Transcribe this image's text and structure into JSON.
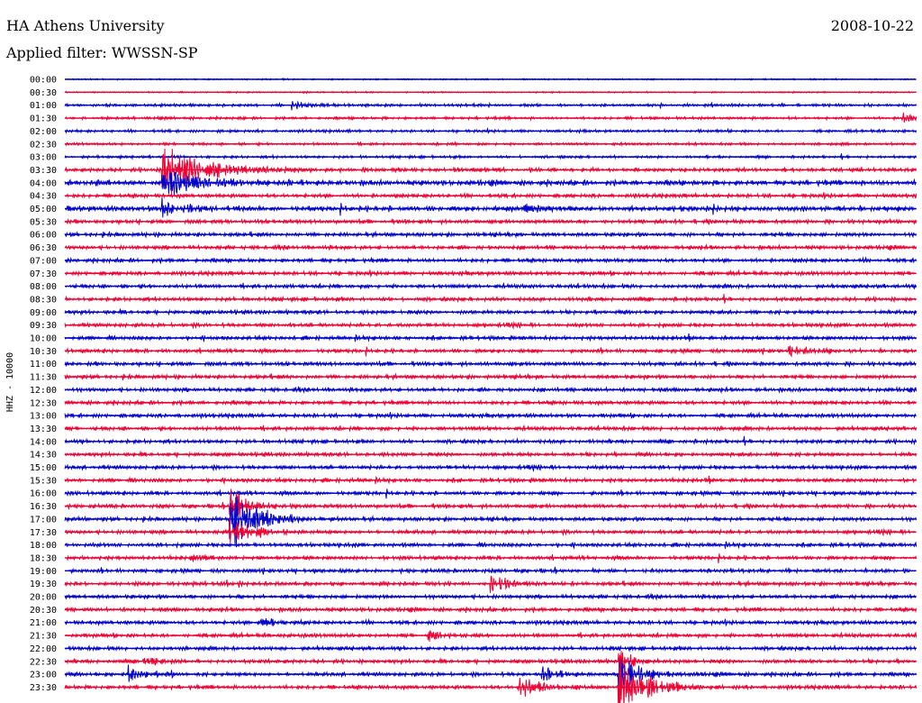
{
  "header": {
    "title": "HA Athens University",
    "date": "2008-10-22",
    "filter_label": "Applied filter: WWSSN-SP"
  },
  "chart_data": {
    "type": "line",
    "title": "",
    "xlabel": "",
    "ylabel": "HHZ - 10000",
    "grid": false,
    "legend": "none",
    "colors": [
      "#0000cc",
      "#ee0033"
    ],
    "rows": [
      "00:00",
      "00:30",
      "01:00",
      "01:30",
      "02:00",
      "02:30",
      "03:00",
      "03:30",
      "04:00",
      "04:30",
      "05:00",
      "05:30",
      "06:00",
      "06:30",
      "07:00",
      "07:30",
      "08:00",
      "08:30",
      "09:00",
      "09:30",
      "10:00",
      "10:30",
      "11:00",
      "11:30",
      "12:00",
      "12:30",
      "13:00",
      "13:30",
      "14:00",
      "14:30",
      "15:00",
      "15:30",
      "16:00",
      "16:30",
      "17:00",
      "17:30",
      "18:00",
      "18:30",
      "19:00",
      "19:30",
      "20:00",
      "20:30",
      "21:00",
      "21:30",
      "22:00",
      "22:30",
      "23:00",
      "23:30"
    ],
    "noise_level": [
      1,
      1,
      2,
      2,
      2,
      2,
      2,
      3,
      4,
      3,
      4,
      3,
      3,
      3,
      3,
      3,
      3,
      3,
      3,
      3,
      3,
      3,
      3,
      3,
      3,
      3,
      3,
      3,
      3,
      3,
      3,
      3,
      3,
      3,
      3,
      3,
      3,
      3,
      3,
      3,
      3,
      3,
      3,
      3,
      3,
      3,
      3,
      3
    ],
    "events": [
      {
        "row": 2,
        "minute": 8.0,
        "amp": 0.5,
        "dur": 1.0
      },
      {
        "row": 3,
        "minute": 29.5,
        "amp": 0.6,
        "dur": 0.6
      },
      {
        "row": 7,
        "minute": 3.4,
        "amp": 3.0,
        "dur": 2.0
      },
      {
        "row": 8,
        "minute": 3.4,
        "amp": 1.5,
        "dur": 2.0
      },
      {
        "row": 10,
        "minute": 3.4,
        "amp": 1.0,
        "dur": 1.0
      },
      {
        "row": 10,
        "minute": 16.0,
        "amp": 0.5,
        "dur": 0.8
      },
      {
        "row": 21,
        "minute": 25.5,
        "amp": 0.5,
        "dur": 1.0
      },
      {
        "row": 33,
        "minute": 5.8,
        "amp": 2.0,
        "dur": 1.0
      },
      {
        "row": 34,
        "minute": 5.8,
        "amp": 3.0,
        "dur": 1.5
      },
      {
        "row": 35,
        "minute": 5.8,
        "amp": 1.5,
        "dur": 1.0
      },
      {
        "row": 37,
        "minute": 4.5,
        "amp": 0.4,
        "dur": 0.6
      },
      {
        "row": 39,
        "minute": 15.0,
        "amp": 0.8,
        "dur": 1.0
      },
      {
        "row": 42,
        "minute": 6.8,
        "amp": 0.6,
        "dur": 0.6
      },
      {
        "row": 43,
        "minute": 12.8,
        "amp": 0.5,
        "dur": 0.6
      },
      {
        "row": 45,
        "minute": 2.8,
        "amp": 0.5,
        "dur": 0.6
      },
      {
        "row": 46,
        "minute": 2.2,
        "amp": 0.8,
        "dur": 0.8
      },
      {
        "row": 46,
        "minute": 16.8,
        "amp": 0.7,
        "dur": 0.8
      },
      {
        "row": 47,
        "minute": 16.0,
        "amp": 1.5,
        "dur": 1.0
      },
      {
        "row": 45,
        "minute": 19.5,
        "amp": 1.5,
        "dur": 0.6
      },
      {
        "row": 46,
        "minute": 19.5,
        "amp": 2.5,
        "dur": 1.0
      },
      {
        "row": 47,
        "minute": 19.5,
        "amp": 3.0,
        "dur": 1.5
      }
    ]
  }
}
